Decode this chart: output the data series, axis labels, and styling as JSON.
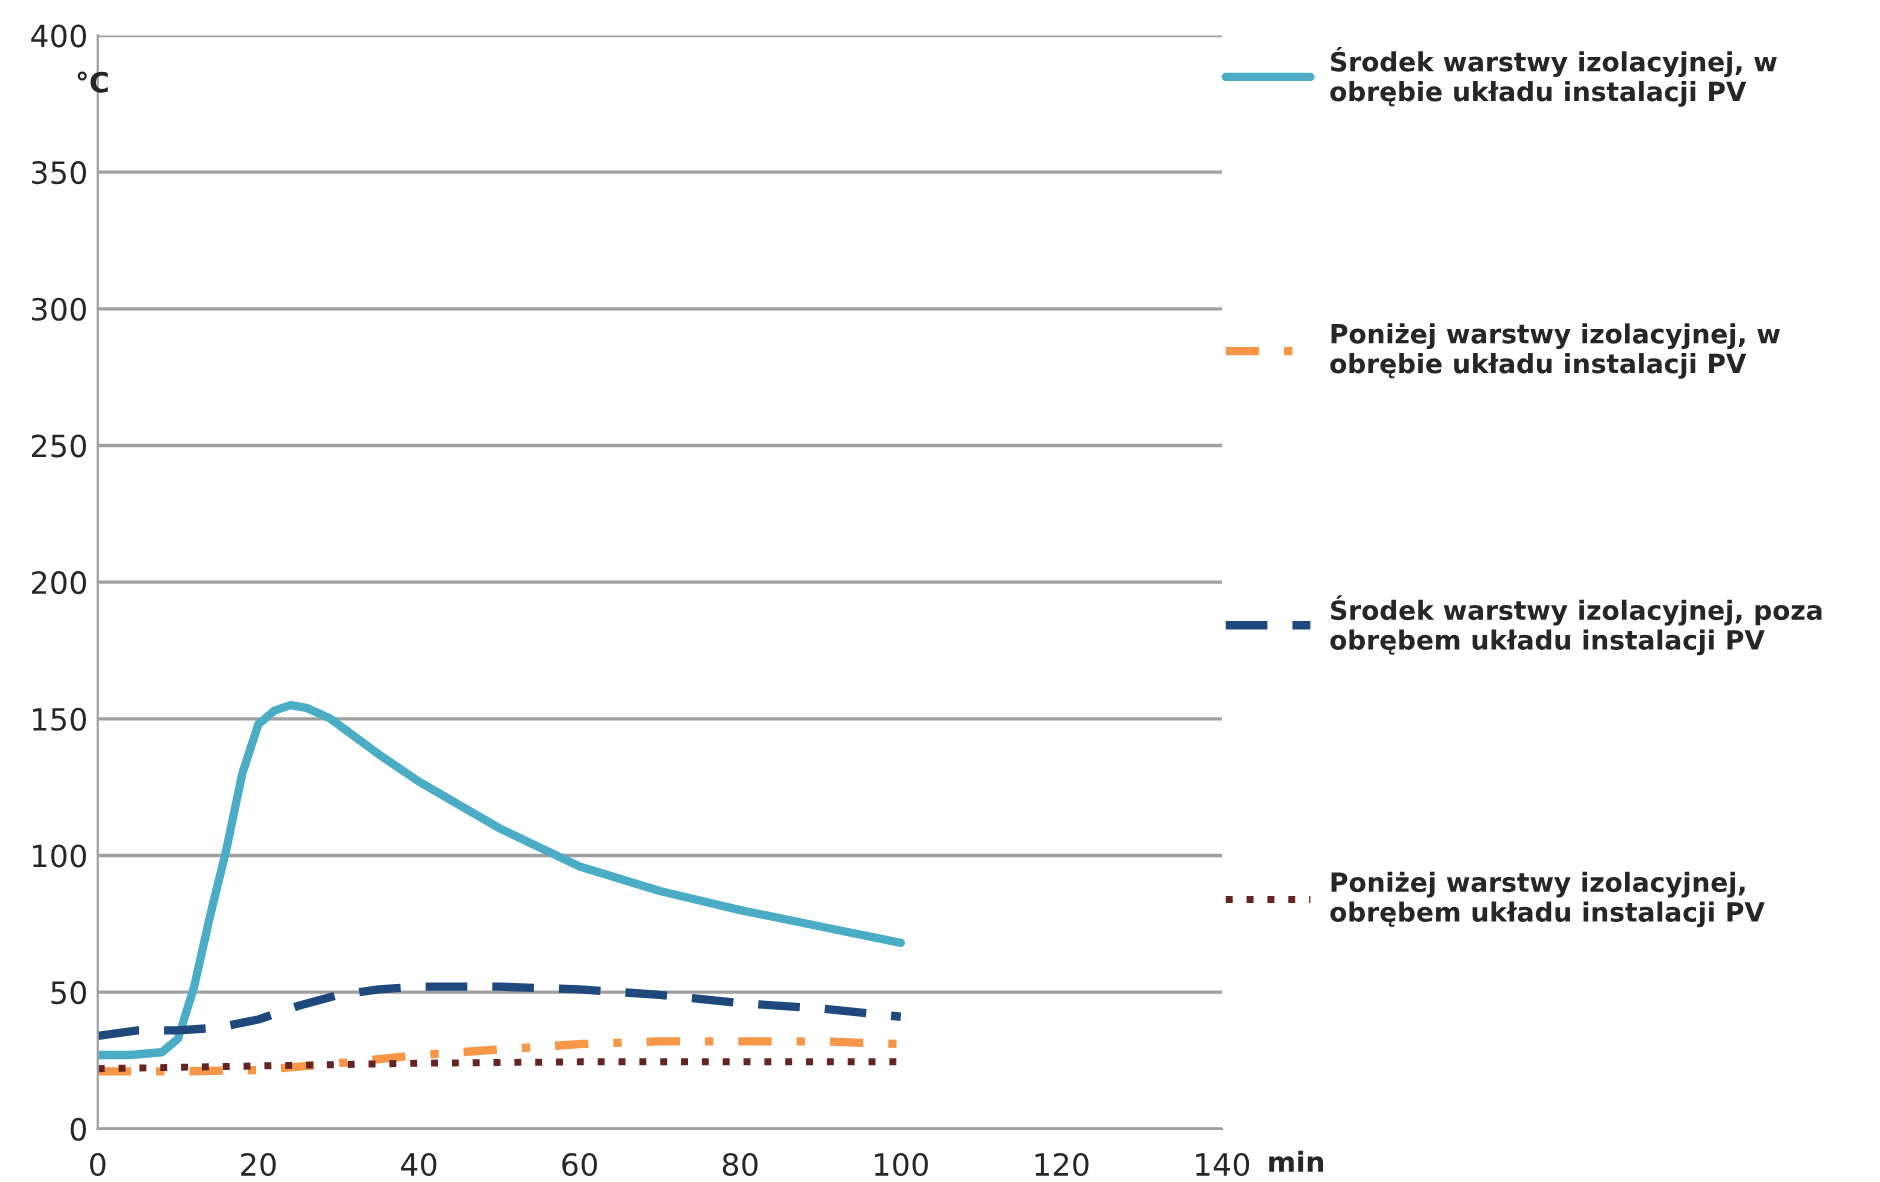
{
  "chart_data": {
    "type": "line",
    "ylabel": "°C",
    "xlabel": "min",
    "xlim": [
      0,
      140
    ],
    "xticks": [
      0,
      20,
      40,
      60,
      80,
      100,
      120,
      140
    ],
    "ylim": [
      0,
      400
    ],
    "yticks": [
      0,
      50,
      100,
      150,
      200,
      250,
      300,
      350,
      400
    ],
    "grid": "y",
    "legend": "right",
    "marker": "none",
    "series": [
      {
        "name": "Środek warstwy izolacyjnej, w obrębie układu instalacji PV",
        "color": "#4bacc6",
        "line_style": "solid",
        "x": [
          0,
          4,
          8,
          10,
          12,
          14,
          16,
          18,
          20,
          22,
          24,
          26,
          29,
          35,
          40,
          50,
          60,
          70,
          80,
          90,
          100
        ],
        "values": [
          27,
          27,
          28,
          33,
          52,
          78,
          102,
          130,
          148,
          153,
          155,
          154,
          150,
          137,
          127,
          110,
          96,
          87,
          80,
          74,
          68
        ]
      },
      {
        "name": "Poniżej warstwy izolacyjnej, w obrębie układu instalacji PV",
        "color": "#f79646",
        "line_style": "dashdot",
        "x": [
          0,
          10,
          20,
          30,
          40,
          50,
          60,
          70,
          80,
          90,
          100
        ],
        "values": [
          21,
          21,
          21.5,
          24,
          27,
          29,
          31,
          32,
          32,
          32,
          31
        ]
      },
      {
        "name": "Środek warstwy izolacyjnej, poza obrębem układu instalacji PV",
        "color": "#1f497d",
        "line_style": "dashed",
        "x": [
          0,
          5,
          10,
          15,
          20,
          25,
          30,
          35,
          40,
          50,
          60,
          70,
          80,
          90,
          100
        ],
        "values": [
          34,
          36,
          36,
          37,
          40,
          45,
          49,
          51,
          52,
          52,
          51,
          49,
          46,
          44,
          41
        ]
      },
      {
        "name": "Poniżej warstwy izolacyjnej, obrębem układu instalacji PV",
        "color": "#632523",
        "line_style": "dotted",
        "x": [
          0,
          20,
          40,
          60,
          80,
          100
        ],
        "values": [
          22,
          23,
          24,
          24.5,
          24.5,
          24.5
        ]
      }
    ]
  }
}
